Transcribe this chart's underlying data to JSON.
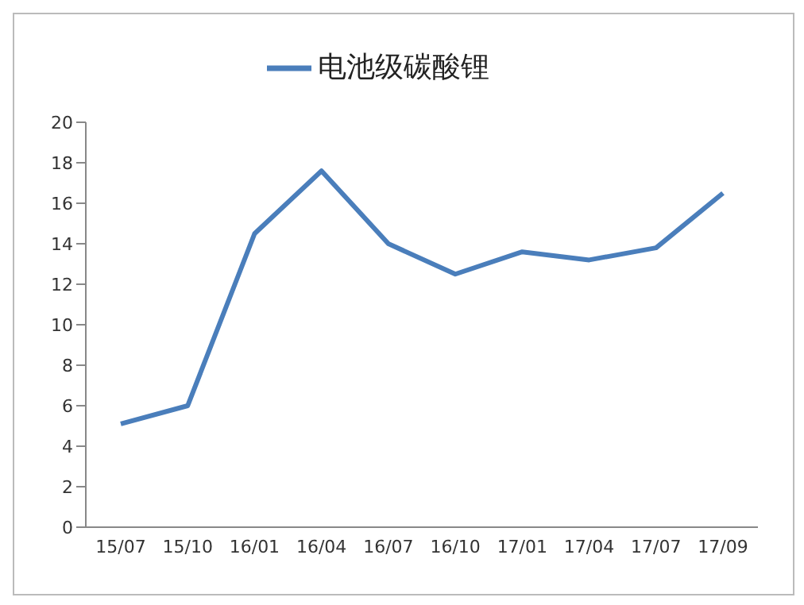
{
  "chart_data": {
    "type": "line",
    "categories": [
      "15/07",
      "15/10",
      "16/01",
      "16/04",
      "16/07",
      "16/10",
      "17/01",
      "17/04",
      "17/07",
      "17/09"
    ],
    "series": [
      {
        "name": "电池级碳酸锂",
        "color": "#4a7ebb",
        "values": [
          5.1,
          6.0,
          14.5,
          17.6,
          14.0,
          12.5,
          13.6,
          13.2,
          13.8,
          16.5
        ]
      }
    ],
    "ylim": [
      0,
      20
    ],
    "yticks": [
      0,
      2,
      4,
      6,
      8,
      10,
      12,
      14,
      16,
      18,
      20
    ],
    "grid": false,
    "legend": "top",
    "marker": "none",
    "line_style": "solid"
  }
}
